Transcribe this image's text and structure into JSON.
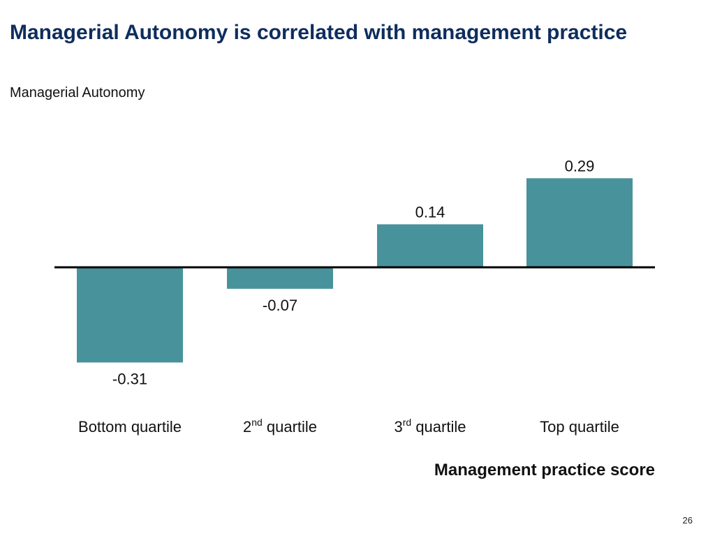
{
  "slide": {
    "title": "Managerial Autonomy is correlated with management practice",
    "subtitle": "Managerial Autonomy",
    "page_number": "26",
    "title_color": "#0e2d5e"
  },
  "chart_data": {
    "type": "bar",
    "categories": [
      {
        "base": "Bottom quartile",
        "sup": "",
        "rest": ""
      },
      {
        "base": "2",
        "sup": "nd",
        "rest": " quartile"
      },
      {
        "base": "3",
        "sup": "rd",
        "rest": " quartile"
      },
      {
        "base": "Top quartile",
        "sup": "",
        "rest": ""
      }
    ],
    "values": [
      -0.31,
      -0.07,
      0.14,
      0.29
    ],
    "value_labels": [
      "-0.31",
      "-0.07",
      "0.14",
      "0.29"
    ],
    "title": "",
    "xlabel": "Management practice score",
    "ylabel": "Managerial Autonomy",
    "ylim": [
      -0.31,
      0.29
    ],
    "grid": false,
    "bar_color": "#48929b"
  }
}
